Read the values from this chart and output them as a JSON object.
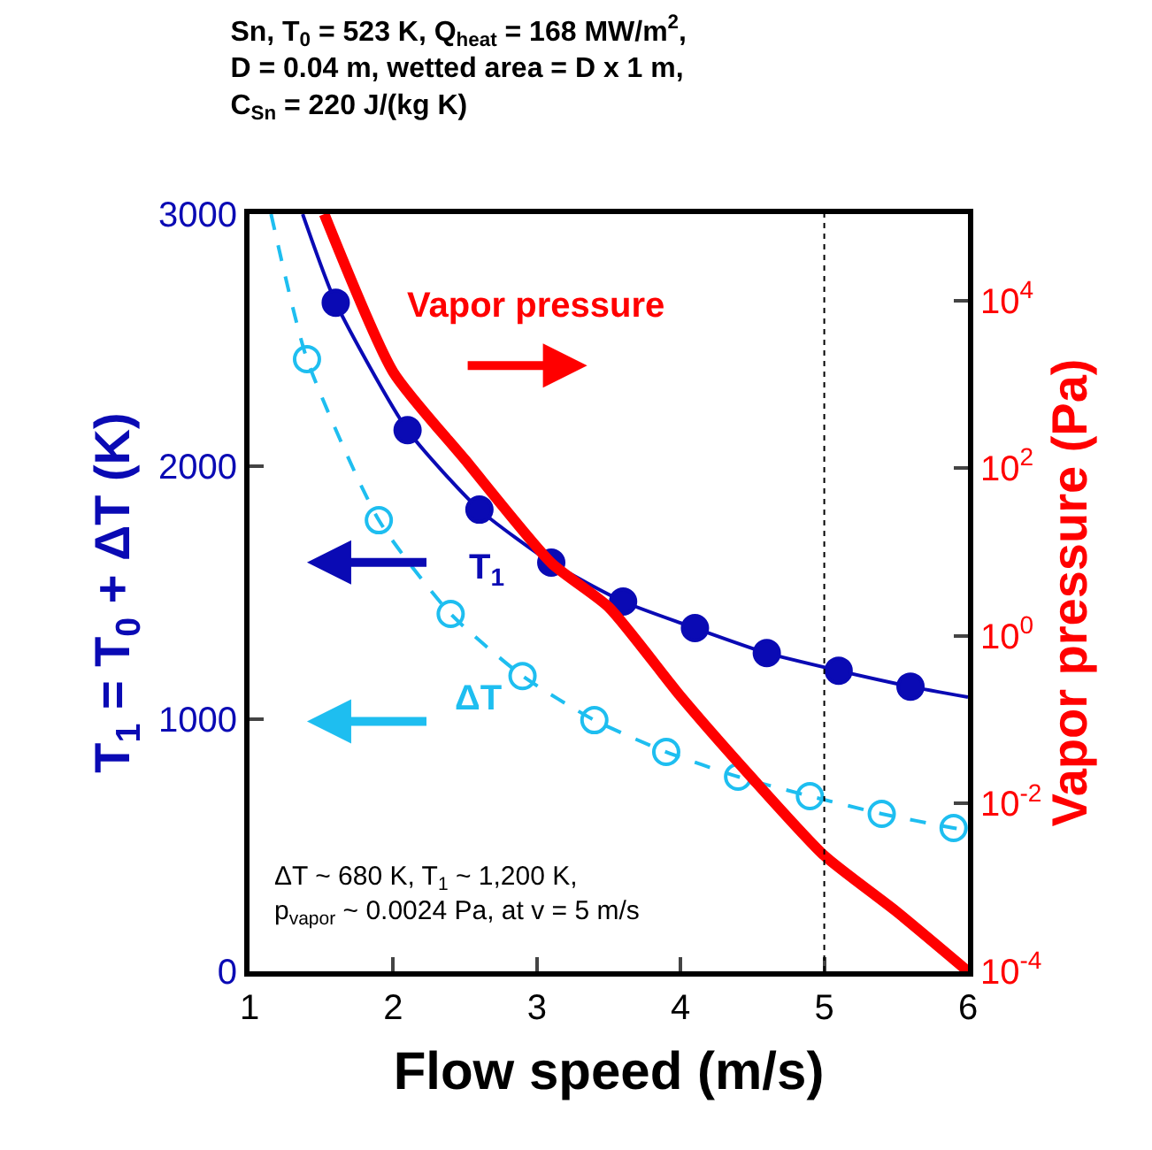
{
  "chart_data": {
    "type": "line",
    "title": "Sn, T$_{0}$ = 523 K, Q$_{heat}$ = 168 MW/m$^{2}$,\nD = 0.04 m, wetted area = D x 1 m,\nC$_{Sn}$ = 220 J/(kg K)",
    "xlabel": "Flow speed (m/s)",
    "ylabel": "T$_{1}$ = T$_{0}$ + ΔT (K)",
    "y2label": "Vapor pressure (Pa)",
    "xlim": [
      1,
      6
    ],
    "xticks": [
      1,
      2,
      3,
      4,
      5,
      6
    ],
    "ylim": [
      0,
      3000
    ],
    "yticks": [
      0,
      1000,
      2000,
      3000
    ],
    "y2lim": [
      0.0001,
      107000
    ],
    "log": "y2",
    "y2ticks": [
      {
        "value": 0.0001,
        "label": "10$^{-4}$"
      },
      {
        "value": 0.01,
        "label": "10$^{-2}$"
      },
      {
        "value": 1,
        "label": "10$^{0}$"
      },
      {
        "value": 100,
        "label": "10$^{2}$"
      },
      {
        "value": 10000,
        "label": "10$^{4}$"
      }
    ],
    "legend": "left",
    "series": [
      {
        "name": "T$_{1}$",
        "color": "#0a0ab4",
        "line_style": "solid",
        "marker": "none",
        "x": [
          1.37,
          1.6,
          2.1,
          2.6,
          3.1,
          3.6,
          4.1,
          4.6,
          5.1,
          5.6,
          6
        ],
        "values": [
          3000,
          2649,
          2144,
          1829,
          1619,
          1465,
          1360,
          1261,
          1191,
          1128,
          1086
        ]
      },
      {
        "color": "#0a0ab4",
        "type": "scatter",
        "marker": "circle",
        "x": [
          1.6,
          2.1,
          2.6,
          3.1,
          3.6,
          4.1,
          4.6,
          5.1,
          5.6
        ],
        "values": [
          2649,
          2144,
          1829,
          1619,
          1465,
          1360,
          1261,
          1191,
          1128
        ]
      },
      {
        "name": "ΔT",
        "color": "#1ebef0",
        "line_style": "dashed",
        "marker": "none",
        "x": [
          1.15,
          1.4,
          1.9,
          2.4,
          2.9,
          3.4,
          3.9,
          4.4,
          4.9,
          5.4,
          5.9,
          6
        ],
        "values": [
          3000,
          2425,
          1787,
          1416,
          1170,
          995,
          869,
          771,
          694,
          624,
          568,
          560
        ]
      },
      {
        "color": "#1ebef0",
        "type": "scatter",
        "marker": "circle-open",
        "x": [
          1.4,
          1.9,
          2.4,
          2.9,
          3.4,
          3.9,
          4.4,
          4.9,
          5.4,
          5.9
        ],
        "values": [
          2425,
          1787,
          1416,
          1170,
          995,
          869,
          771,
          694,
          624,
          568
        ]
      },
      {
        "name": "Vapor pressure",
        "color": "#ff0000",
        "axis": "y2",
        "line_style": "solid",
        "marker": "none",
        "x": [
          1.52,
          2,
          2.5,
          3.1,
          3.5,
          4,
          4.5,
          5,
          5.5,
          6
        ],
        "values": [
          107000,
          1400,
          126,
          7.4,
          2.2,
          0.19,
          0.02,
          0.0024,
          0.00052,
          0.0001
        ]
      }
    ],
    "ref_lines": [
      {
        "axis": "x",
        "value": 5,
        "color": "#000000",
        "line_style": "dotted"
      }
    ],
    "annotations": [
      "ΔT ~ 680 K, T$_{1}$ ~ 1,200 K,\np$_{vapor}$ ~ 0.0024 Pa, at v = 5 m/s"
    ]
  }
}
